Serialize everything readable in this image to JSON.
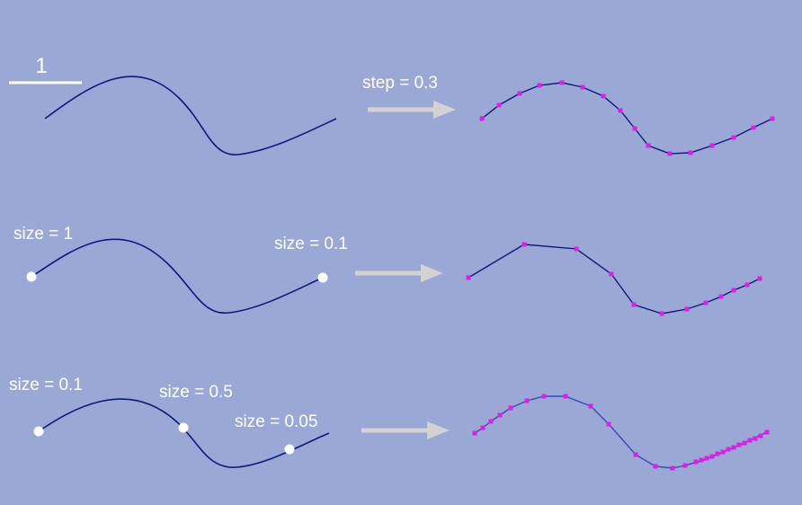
{
  "diagram": {
    "colors": {
      "background": "#9aa8d6",
      "curve": "#0d1a7a",
      "curve_fine": "#3a4ab0",
      "sample_point": "#e21ce8",
      "control_point": "#ffffff",
      "arrow": "#d2d2d2",
      "text": "#ffffff"
    },
    "scale_bar": {
      "label": "1"
    },
    "rows": [
      {
        "id": "uniform-step",
        "labels": [
          "step = 0.3"
        ]
      },
      {
        "id": "two-sizes",
        "labels": [
          "size = 1",
          "size = 0.1"
        ]
      },
      {
        "id": "three-sizes",
        "labels": [
          "size = 0.1",
          "size = 0.5",
          "size = 0.05"
        ]
      }
    ]
  }
}
